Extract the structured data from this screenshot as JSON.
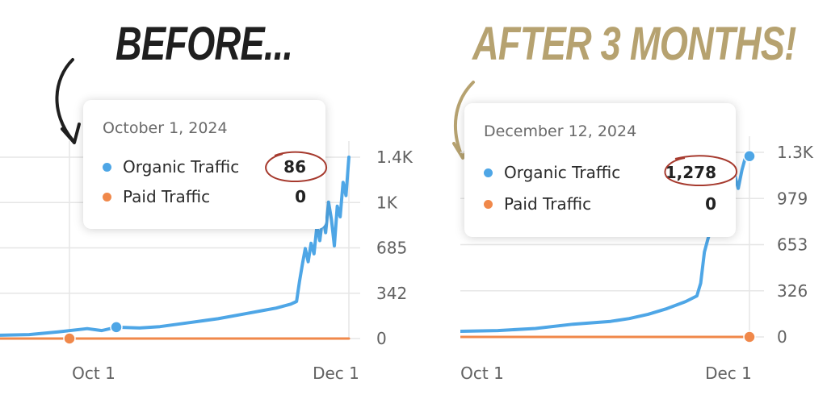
{
  "headlines": {
    "before": "BEFORE...",
    "after": "AFTER 3 MONTHS!"
  },
  "colors": {
    "organic": "#4ea6e6",
    "paid": "#f0884a",
    "before_text": "#1f1f1f",
    "after_text": "#b6a270",
    "annotation": "#a63a2e"
  },
  "before_tooltip": {
    "date": "October 1, 2024",
    "rows": [
      {
        "name": "Organic Traffic",
        "value": "86"
      },
      {
        "name": "Paid Traffic",
        "value": "0"
      }
    ]
  },
  "after_tooltip": {
    "date": "December 12, 2024",
    "rows": [
      {
        "name": "Organic Traffic",
        "value": "1,278"
      },
      {
        "name": "Paid Traffic",
        "value": "0"
      }
    ]
  },
  "chart_data": [
    {
      "type": "line",
      "x_tick_labels": [
        "Oct 1",
        "Dec 1"
      ],
      "y_tick_labels": [
        "1.4K",
        "1K",
        "685",
        "342",
        "0"
      ],
      "ylim": [
        0,
        1370
      ],
      "grid": true,
      "series": [
        {
          "name": "Organic Traffic",
          "color": "#4ea6e6",
          "points": [
            [
              -40,
              25
            ],
            [
              -30,
              30
            ],
            [
              -20,
              50
            ],
            [
              -10,
              75
            ],
            [
              -5,
              60
            ],
            [
              0,
              86
            ],
            [
              8,
              80
            ],
            [
              15,
              90
            ],
            [
              25,
              120
            ],
            [
              35,
              150
            ],
            [
              45,
              190
            ],
            [
              50,
              210
            ],
            [
              55,
              230
            ],
            [
              60,
              260
            ],
            [
              62,
              280
            ],
            [
              63,
              430
            ],
            [
              64,
              560
            ],
            [
              65,
              680
            ],
            [
              66,
              580
            ],
            [
              67,
              720
            ],
            [
              68,
              640
            ],
            [
              69,
              850
            ],
            [
              70,
              740
            ],
            [
              71,
              920
            ],
            [
              72,
              800
            ],
            [
              73,
              1030
            ],
            [
              74,
              900
            ],
            [
              75,
              700
            ],
            [
              76,
              1000
            ],
            [
              77,
              920
            ],
            [
              78,
              1180
            ],
            [
              79,
              1080
            ],
            [
              80,
              1370
            ]
          ]
        },
        {
          "name": "Paid Traffic",
          "color": "#f0884a",
          "points": [
            [
              -40,
              0
            ],
            [
              80,
              0
            ]
          ]
        }
      ]
    },
    {
      "type": "line",
      "x_tick_labels": [
        "Oct 1",
        "Dec 1"
      ],
      "y_tick_labels": [
        "1.3K",
        "979",
        "653",
        "326",
        "0"
      ],
      "ylim": [
        0,
        1305
      ],
      "grid": true,
      "series": [
        {
          "name": "Organic Traffic",
          "color": "#4ea6e6",
          "points": [
            [
              0,
              40
            ],
            [
              10,
              45
            ],
            [
              20,
              60
            ],
            [
              30,
              90
            ],
            [
              40,
              110
            ],
            [
              45,
              130
            ],
            [
              50,
              160
            ],
            [
              55,
              200
            ],
            [
              60,
              250
            ],
            [
              63,
              290
            ],
            [
              64,
              380
            ],
            [
              65,
              600
            ],
            [
              66,
              700
            ],
            [
              67,
              780
            ],
            [
              68,
              720
            ],
            [
              69,
              880
            ],
            [
              70,
              800
            ],
            [
              71,
              1000
            ],
            [
              72,
              900
            ],
            [
              73,
              1150
            ],
            [
              74,
              1050
            ],
            [
              75,
              1180
            ],
            [
              76,
              1278
            ],
            [
              77,
              1278
            ]
          ]
        },
        {
          "name": "Paid Traffic",
          "color": "#f0884a",
          "points": [
            [
              0,
              0
            ],
            [
              77,
              0
            ]
          ]
        }
      ]
    }
  ]
}
